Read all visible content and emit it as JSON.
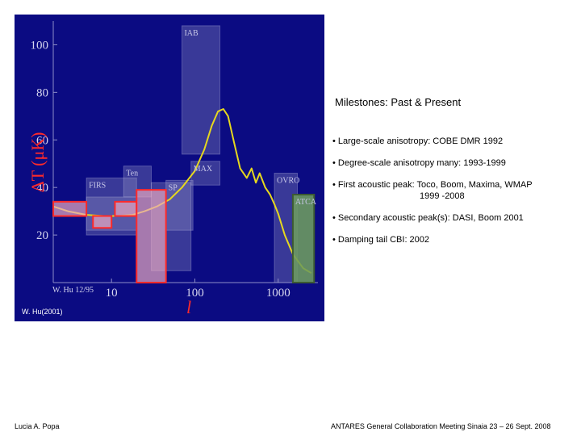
{
  "slide": {
    "title": "Milestones: Past & Present",
    "bullets": [
      {
        "main": "• Large-scale anisotropy: COBE DMR 1992"
      },
      {
        "main": "• Degree-scale anisotropy many: 1993-1999"
      },
      {
        "main": "• First acoustic peak: Toco, Boom, Maxima, WMAP",
        "cont": "1999 -2008"
      },
      {
        "main": "• Secondary acoustic peak(s): DASI, Boom 2001"
      },
      {
        "main": "• Damping tail CBI: 2002"
      }
    ],
    "footer_left": "Lucia A. Popa",
    "footer_right": "ANTARES General Collaboration Meeting   Sinaia 23 – 26 Sept. 2008"
  },
  "chart_data": {
    "type": "scatter",
    "xscale": "log",
    "xlabel": "l",
    "ylabel": "ΔT (μK)",
    "xlim": [
      2,
      3000
    ],
    "ylim": [
      0,
      110
    ],
    "xticks": [
      "10",
      "100",
      "1000"
    ],
    "yticks": [
      "20",
      "40",
      "60",
      "80",
      "100"
    ],
    "credit": "W. Hu 12/95",
    "source_note": "W. Hu(2001)",
    "colors": {
      "background": "#0b0b82",
      "curve": "#e6d81e",
      "edge": "#ff2a2a",
      "box": "#9a9ac8",
      "atca": "#6a9a5a"
    },
    "theory_curve": {
      "l": [
        2,
        3,
        5,
        8,
        12,
        18,
        25,
        35,
        50,
        70,
        100,
        130,
        160,
        190,
        220,
        250,
        300,
        350,
        420,
        480,
        540,
        600,
        700,
        800,
        900,
        1000,
        1200,
        1500,
        2000,
        2500
      ],
      "dt": [
        32,
        30,
        28.5,
        28,
        28,
        28.5,
        30,
        32,
        35,
        40,
        47,
        56,
        66,
        72,
        73,
        70,
        58,
        48,
        44,
        48,
        42,
        46,
        40,
        37,
        33,
        29,
        20,
        12,
        6,
        4
      ]
    },
    "highlighted_measurements": [
      {
        "l": [
          2,
          5
        ],
        "dt": [
          28,
          34
        ]
      },
      {
        "l": [
          6,
          10
        ],
        "dt": [
          23,
          28
        ]
      },
      {
        "l": [
          11,
          20
        ],
        "dt": [
          28,
          34
        ]
      },
      {
        "l": [
          20,
          45
        ],
        "dt": [
          0,
          39
        ]
      },
      {
        "l": [
          1500,
          2700
        ],
        "dt": [
          0,
          37
        ]
      }
    ],
    "experiment_boxes": [
      {
        "name": "",
        "l": [
          5,
          20
        ],
        "dt": [
          22,
          36
        ]
      },
      {
        "name": "FIRS",
        "l": [
          5,
          20
        ],
        "dt": [
          20,
          44
        ]
      },
      {
        "name": "Ten",
        "l": [
          14,
          30
        ],
        "dt": [
          36,
          49
        ]
      },
      {
        "name": "IAB",
        "l": [
          70,
          200
        ],
        "dt": [
          54,
          108
        ]
      },
      {
        "name": "SP",
        "l": [
          45,
          95
        ],
        "dt": [
          22,
          43
        ]
      },
      {
        "name": "MAX",
        "l": [
          90,
          200
        ],
        "dt": [
          41,
          51
        ]
      },
      {
        "name": "",
        "l": [
          30,
          90
        ],
        "dt": [
          5,
          42
        ]
      },
      {
        "name": "OVRO",
        "l": [
          900,
          1700
        ],
        "dt": [
          0,
          46
        ]
      },
      {
        "name": "ATCA",
        "l": [
          1500,
          2700
        ],
        "dt": [
          0,
          37
        ]
      }
    ]
  }
}
